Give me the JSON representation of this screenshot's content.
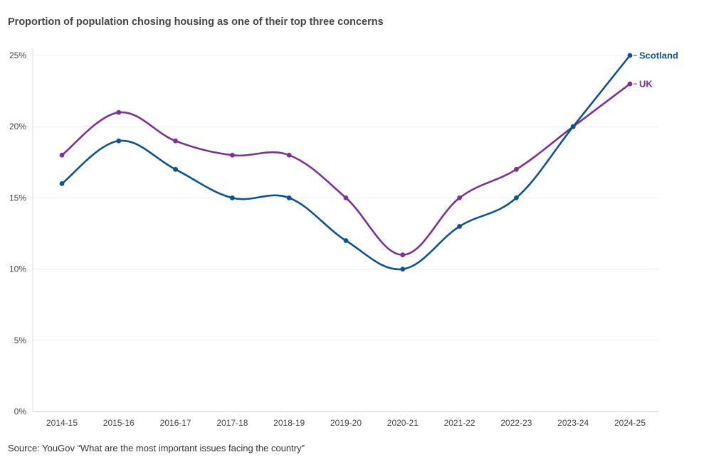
{
  "title": "Proportion of population chosing housing as one of their top three concerns",
  "source": "Source: YouGov “What are the most important issues facing the country”",
  "chart_data": {
    "type": "line",
    "title": "Proportion of population chosing housing as one of their top three concerns",
    "xlabel": "",
    "ylabel": "",
    "categories": [
      "2014-15",
      "2015-16",
      "2016-17",
      "2017-18",
      "2018-19",
      "2019-20",
      "2020-21",
      "2021-22",
      "2022-23",
      "2023-24",
      "2024-25"
    ],
    "ylim": [
      0,
      25
    ],
    "yticks": [
      0,
      5,
      10,
      15,
      20,
      25
    ],
    "ytick_labels": [
      "0%",
      "5%",
      "10%",
      "15%",
      "20%",
      "25%"
    ],
    "grid": true,
    "legend": "end-of-line labels",
    "series": [
      {
        "name": "Scotland",
        "color": "#0b5394",
        "values": [
          16,
          19,
          17,
          15,
          15,
          12,
          10,
          13,
          15,
          20,
          25
        ]
      },
      {
        "name": "UK",
        "color": "#7b3294",
        "values": [
          18,
          21,
          19,
          18,
          18,
          15,
          11,
          15,
          17,
          20,
          23
        ]
      }
    ]
  }
}
